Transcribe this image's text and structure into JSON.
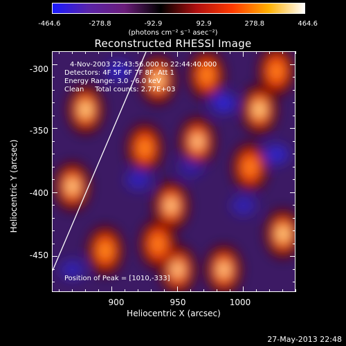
{
  "colorbar": {
    "ticks": [
      "-464.6",
      "-278.8",
      "-92.9",
      "92.9",
      "278.8",
      "464.6"
    ],
    "units": "(photons cm⁻² s⁻¹ asec⁻²)",
    "range": [
      -464.6,
      464.6
    ],
    "colors": [
      "#1a1aff",
      "#5a24a8",
      "#6b1d7a",
      "#000000",
      "#b01010",
      "#ff3a00",
      "#ffb000",
      "#ffffff"
    ]
  },
  "title": "Reconstructed RHESSI Image",
  "info": {
    "time": "4-Nov-2003 22:43:56.000 to 22:44:40.000",
    "detectors": "Detectors: 4F 5F 6F 7F 8F, Att 1",
    "energy": "Energy Range: 3.0 - 6.0 keV",
    "clean": "Clean     Total counts: 2.77E+03",
    "peak": "Position of Peak = [1010,-333]"
  },
  "axes": {
    "xlabel": "Heliocentric X (arcsec)",
    "ylabel": "Heliocentric Y (arcsec)",
    "xticks": [
      "900",
      "950",
      "1000"
    ],
    "yticks": [
      "-300",
      "-350",
      "-400",
      "-450"
    ],
    "xrange": [
      855,
      1040
    ],
    "yrange": [
      -290,
      -478
    ]
  },
  "map_blobs": [
    {
      "x": 880,
      "y": -335,
      "v": 1.0
    },
    {
      "x": 935,
      "y": -312,
      "v": 0.9
    },
    {
      "x": 972,
      "y": -308,
      "v": 0.55
    },
    {
      "x": 1012,
      "y": -335,
      "v": 1.0
    },
    {
      "x": 965,
      "y": -360,
      "v": 0.8
    },
    {
      "x": 1025,
      "y": -305,
      "v": 0.5
    },
    {
      "x": 870,
      "y": -395,
      "v": 0.9
    },
    {
      "x": 925,
      "y": -365,
      "v": 0.55
    },
    {
      "x": 945,
      "y": -410,
      "v": 0.85
    },
    {
      "x": 1005,
      "y": -380,
      "v": 0.5
    },
    {
      "x": 1030,
      "y": -432,
      "v": 1.0
    },
    {
      "x": 985,
      "y": -460,
      "v": 0.85
    },
    {
      "x": 950,
      "y": -460,
      "v": 0.8
    },
    {
      "x": 895,
      "y": -445,
      "v": 0.6
    },
    {
      "x": 935,
      "y": -440,
      "v": 0.5
    },
    {
      "x": 905,
      "y": -305,
      "v": -0.6
    },
    {
      "x": 985,
      "y": -330,
      "v": -0.7
    },
    {
      "x": 920,
      "y": -390,
      "v": -0.55
    },
    {
      "x": 1025,
      "y": -370,
      "v": -0.65
    },
    {
      "x": 1000,
      "y": -410,
      "v": -0.5
    },
    {
      "x": 870,
      "y": -460,
      "v": -0.5
    },
    {
      "x": 960,
      "y": -380,
      "v": -0.4
    }
  ],
  "datestamp": "27-May-2013 22:48"
}
